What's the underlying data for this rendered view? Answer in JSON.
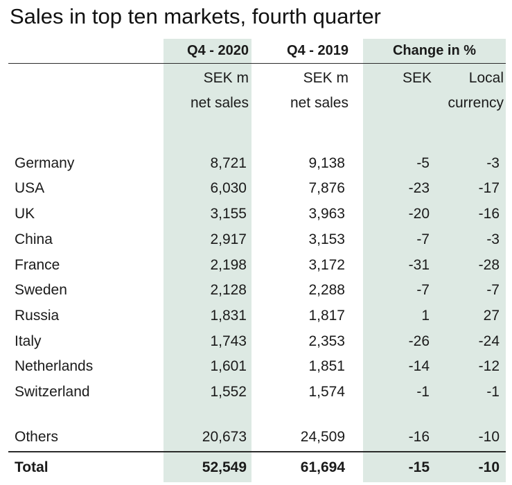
{
  "title": "Sales in top ten markets, fourth quarter",
  "headers": {
    "col1": "Q4 - 2020",
    "col2": "Q4 - 2019",
    "col3": "Change in %"
  },
  "subheaders": {
    "col1_line1": "SEK m",
    "col1_line2": "net sales",
    "col2_line1": "SEK m",
    "col2_line2": "net sales",
    "sek": "SEK",
    "local_line1": "Local",
    "local_line2": "currency"
  },
  "rows": [
    {
      "market": "Germany",
      "q4_2020": "8,721",
      "q4_2019": "9,138",
      "sek": "-5",
      "local": "-3"
    },
    {
      "market": "USA",
      "q4_2020": "6,030",
      "q4_2019": "7,876",
      "sek": "-23",
      "local": "-17"
    },
    {
      "market": "UK",
      "q4_2020": "3,155",
      "q4_2019": "3,963",
      "sek": "-20",
      "local": "-16"
    },
    {
      "market": "China",
      "q4_2020": "2,917",
      "q4_2019": "3,153",
      "sek": "-7",
      "local": "-3"
    },
    {
      "market": "France",
      "q4_2020": "2,198",
      "q4_2019": "3,172",
      "sek": "-31",
      "local": "-28"
    },
    {
      "market": "Sweden",
      "q4_2020": "2,128",
      "q4_2019": "2,288",
      "sek": "-7",
      "local": "-7"
    },
    {
      "market": "Russia",
      "q4_2020": "1,831",
      "q4_2019": "1,817",
      "sek": "1",
      "local": "27"
    },
    {
      "market": "Italy",
      "q4_2020": "1,743",
      "q4_2019": "2,353",
      "sek": "-26",
      "local": "-24"
    },
    {
      "market": "Netherlands",
      "q4_2020": "1,601",
      "q4_2019": "1,851",
      "sek": "-14",
      "local": "-12"
    },
    {
      "market": "Switzerland",
      "q4_2020": "1,552",
      "q4_2019": "1,574",
      "sek": "-1",
      "local": "-1"
    }
  ],
  "others": {
    "market": "Others",
    "q4_2020": "20,673",
    "q4_2019": "24,509",
    "sek": "-16",
    "local": "-10"
  },
  "total": {
    "market": "Total",
    "q4_2020": "52,549",
    "q4_2019": "61,694",
    "sek": "-15",
    "local": "-10"
  }
}
